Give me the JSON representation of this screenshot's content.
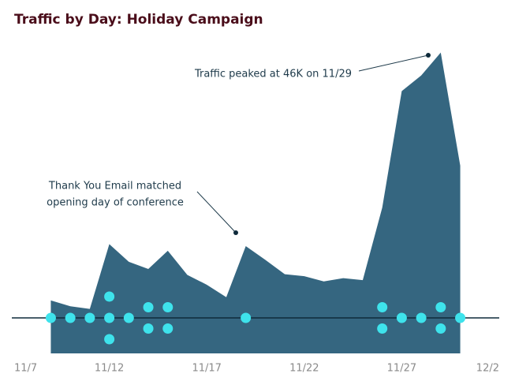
{
  "chart_data": {
    "type": "area",
    "title": "Traffic by Day: Holiday Campaign",
    "x": [
      "11/9",
      "11/10",
      "11/11",
      "11/12",
      "11/13",
      "11/14",
      "11/15",
      "11/16",
      "11/17",
      "11/18",
      "11/19",
      "11/20",
      "11/21",
      "11/22",
      "11/23",
      "11/24",
      "11/25",
      "11/26",
      "11/27",
      "11/28",
      "11/29",
      "11/30"
    ],
    "values": [
      8.1,
      7.2,
      6.8,
      16.7,
      14.0,
      12.9,
      15.7,
      12.0,
      10.5,
      8.6,
      16.4,
      14.3,
      12.1,
      11.8,
      11.0,
      11.5,
      11.2,
      22.3,
      40.1,
      42.5,
      46,
      28.7
    ],
    "email_counts": [
      1,
      1,
      1,
      3,
      1,
      2,
      2,
      null,
      null,
      null,
      1,
      null,
      null,
      null,
      null,
      null,
      null,
      2,
      1,
      1,
      2,
      1
    ],
    "color": "#356680",
    "dot_color": "#3ee3ec",
    "xlim": [
      "11/7",
      "12/2"
    ],
    "xticks": [
      "11/7",
      "11/12",
      "11/17",
      "11/22",
      "11/27",
      "12/2"
    ],
    "ylim": [
      0,
      48
    ],
    "annotations": [
      {
        "text": "Traffic peaked at 46K on 11/29",
        "x": "11/29"
      },
      {
        "lines": [
          "Thank You Email matched",
          "opening day of conference"
        ],
        "x": "11/19"
      }
    ]
  }
}
